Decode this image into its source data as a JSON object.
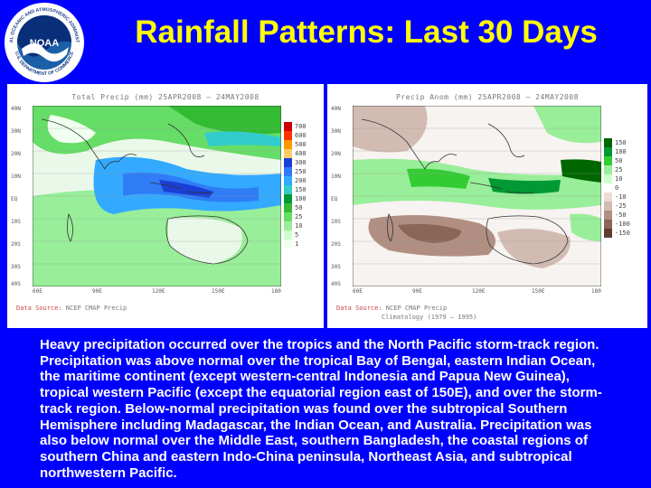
{
  "title": "Rainfall Patterns: Last 30 Days",
  "logo": {
    "center_text": "NOAA",
    "ring_text_top": "NATIONAL OCEANIC AND ATMOSPHERIC ADMINISTRATION",
    "ring_text_bottom": "U.S. DEPARTMENT OF COMMERCE",
    "colors": {
      "outer": "#1b5fa8",
      "inner": "#0a2f7a",
      "ring": "#ffffff"
    }
  },
  "left_panel": {
    "title": "Total Precip (mm) 25APR2008 – 24MAY2008",
    "source_label": "Data Source:",
    "source_value": "NCEP CMAP Precip",
    "lat_labels": [
      "40N",
      "30N",
      "20N",
      "10N",
      "EQ",
      "10S",
      "20S",
      "30S",
      "40S"
    ],
    "lon_labels": [
      "60E",
      "90E",
      "120E",
      "150E",
      "180"
    ],
    "legend": [
      {
        "label": "700",
        "color": "#cc0000"
      },
      {
        "label": "600",
        "color": "#ff3300"
      },
      {
        "label": "500",
        "color": "#ff9900"
      },
      {
        "label": "400",
        "color": "#ffcc66"
      },
      {
        "label": "300",
        "color": "#1b3fd6"
      },
      {
        "label": "250",
        "color": "#2f7cf6"
      },
      {
        "label": "200",
        "color": "#33aaff"
      },
      {
        "label": "150",
        "color": "#33cccc"
      },
      {
        "label": "100",
        "color": "#009933"
      },
      {
        "label": "50",
        "color": "#33bb33"
      },
      {
        "label": "25",
        "color": "#66dd66"
      },
      {
        "label": "10",
        "color": "#99ee99"
      },
      {
        "label": "5",
        "color": "#ccffcc"
      },
      {
        "label": "1",
        "color": "#f0fff0"
      }
    ]
  },
  "right_panel": {
    "title": "Precip Anom (mm) 25APR2008 – 24MAY2008",
    "source_label": "Data Source:",
    "source_value": "NCEP CMAP Precip",
    "climatology": "Climatology (1979 – 1995)",
    "lat_labels": [
      "40N",
      "30N",
      "20N",
      "10N",
      "EQ",
      "10S",
      "20S",
      "30S",
      "40S"
    ],
    "lon_labels": [
      "60E",
      "90E",
      "120E",
      "150E",
      "180"
    ],
    "legend": [
      {
        "label": "150",
        "color": "#006600"
      },
      {
        "label": "100",
        "color": "#009933"
      },
      {
        "label": "50",
        "color": "#33cc33"
      },
      {
        "label": "25",
        "color": "#99ee99"
      },
      {
        "label": "10",
        "color": "#ccffcc"
      },
      {
        "label": "0",
        "color": "#ffffff"
      },
      {
        "label": "-10",
        "color": "#eadcd6"
      },
      {
        "label": "-25",
        "color": "#d2bcb2"
      },
      {
        "label": "-50",
        "color": "#b08f82"
      },
      {
        "label": "-100",
        "color": "#8a6658"
      },
      {
        "label": "-150",
        "color": "#5e3e31"
      }
    ]
  },
  "caption": "Heavy precipitation occurred over the tropics and the North Pacific storm-track region. Precipitation was above normal over the tropical Bay of Bengal, eastern Indian Ocean, the maritime continent (except western-central Indonesia and Papua New Guinea), tropical western Pacific (except the equatorial region east of 150E), and over the storm-track region. Below-normal precipitation was found over the subtropical Southern Hemisphere including Madagascar, the Indian Ocean, and Australia. Precipitation was also below normal over the Middle East, southern Bangladesh, the coastal regions of southern China and eastern Indo-China peninsula, Northeast Asia, and subtropical northwestern Pacific."
}
